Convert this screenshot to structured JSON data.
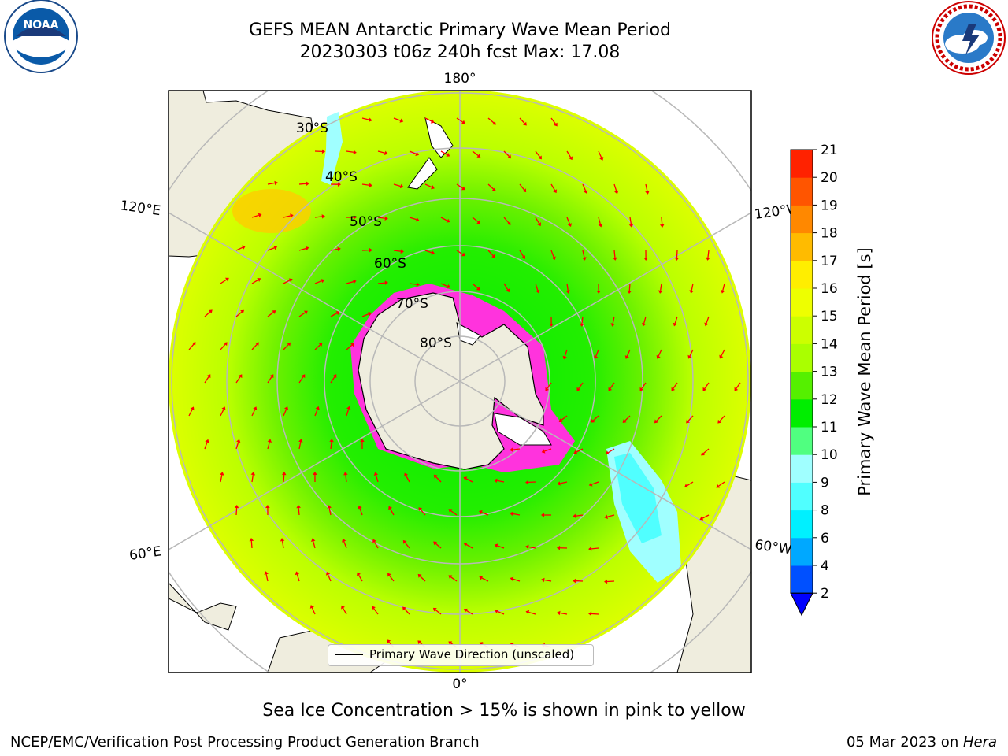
{
  "header": {
    "title_line1": "GEFS MEAN Antarctic Primary Wave Mean Period",
    "title_line2": "20230303 t06z 240h fcst   Max: 17.08"
  },
  "logos": {
    "left": "noaa-logo",
    "right": "national-weather-service-logo",
    "noaa_text": "NOAA",
    "nws_text": "NATIONAL WEATHER SERVICE"
  },
  "map": {
    "projection": "south-polar-stereographic",
    "longitude_labels": {
      "top": "180°",
      "upper_left": "120°E",
      "upper_right": "120°W",
      "lower_left": "60°E",
      "lower_right": "60°W",
      "bottom": "0°"
    },
    "latitude_labels": [
      "30°S",
      "40°S",
      "50°S",
      "60°S",
      "70°S",
      "80°S"
    ],
    "legend_label": "Primary Wave Direction (unscaled)",
    "arrow_color": "#ff0000",
    "land_color": "#efedde",
    "sea_ice_color": "#ff33dd"
  },
  "colorbar": {
    "label": "Primary Wave Mean Period [s]",
    "ticks": [
      "2",
      "4",
      "6",
      "8",
      "9",
      "10",
      "11",
      "12",
      "13",
      "14",
      "15",
      "16",
      "17",
      "18",
      "19",
      "20",
      "21"
    ],
    "colors": [
      "#0050ff",
      "#00a8ff",
      "#00f0ff",
      "#50ffff",
      "#a0ffff",
      "#50ff80",
      "#00ee00",
      "#55f000",
      "#aaff00",
      "#ccff00",
      "#eeff00",
      "#ffee00",
      "#ffbb00",
      "#ff8800",
      "#ff5500",
      "#ff2200"
    ],
    "extend_color": "#0000ff"
  },
  "note": "Sea Ice Concentration > 15% is shown in pink to yellow",
  "footer": {
    "left": "NCEP/EMC/Verification Post Processing Product Generation Branch",
    "right_date": "05 Mar 2023 on ",
    "right_host": "Hera"
  }
}
